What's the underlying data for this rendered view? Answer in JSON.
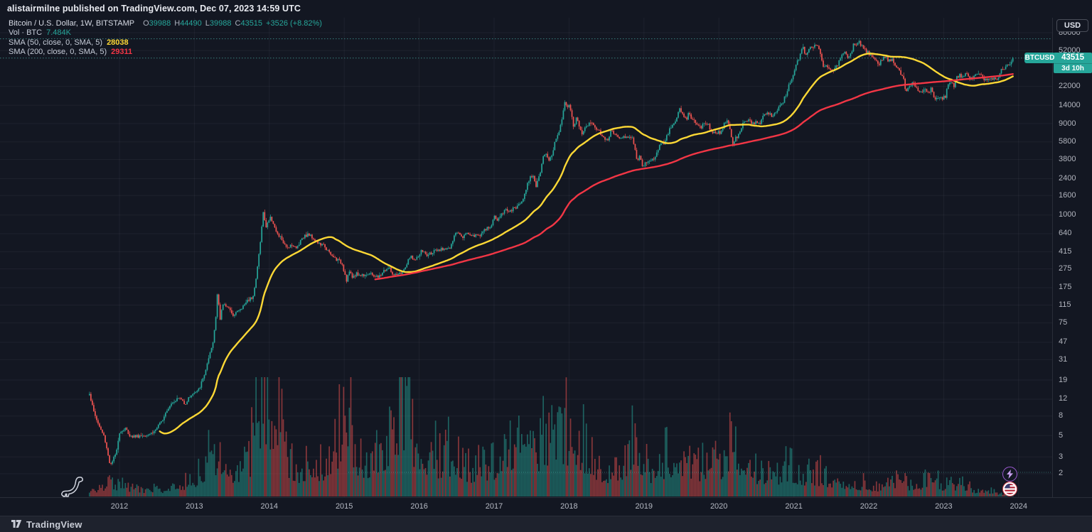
{
  "attribution": "alistairmilne published on TradingView.com, Dec 07, 2023 14:59 UTC",
  "legend": {
    "title": "Bitcoin / U.S. Dollar, 1W, BITSTAMP",
    "ohlc": [
      {
        "k": "O",
        "v": "39988"
      },
      {
        "k": "H",
        "v": "44490"
      },
      {
        "k": "L",
        "v": "39988"
      },
      {
        "k": "C",
        "v": "43515"
      }
    ],
    "change": "+3526 (+8.82%)",
    "vol_label": "Vol · BTC",
    "vol_value": "7.484K",
    "sma50_label": "SMA (50, close, 0, SMA, 5)",
    "sma50_value": "28038",
    "sma200_label": "SMA (200, close, 0, SMA, 5)",
    "sma200_value": "29311"
  },
  "axis": {
    "currency": "USD",
    "price_ticks": [
      80000,
      52000,
      22000,
      14000,
      9000,
      5800,
      3800,
      2400,
      1600,
      1000,
      640,
      415,
      275,
      175,
      115,
      75,
      47,
      31,
      19,
      12,
      8,
      5,
      3,
      2
    ],
    "years": [
      2012,
      2013,
      2014,
      2015,
      2016,
      2017,
      2018,
      2019,
      2020,
      2021,
      2022,
      2023,
      2024
    ],
    "price_tag": {
      "symbol": "BTCUSD",
      "price": "43515",
      "countdown": "3d 10h"
    }
  },
  "footer": {
    "brand": "TradingView"
  },
  "colors": {
    "background": "#131722",
    "candle_up": "#26a69a",
    "candle_down": "#ef5350",
    "sma50": "#fdd835",
    "sma200": "#f23645",
    "level_dotted": "#4db6ac",
    "grid": "rgba(240,243,250,0.05)",
    "axis_text": "#b2b5be"
  },
  "chart_data": {
    "type": "candlestick",
    "title": "Bitcoin / U.S. Dollar, 1W, BITSTAMP",
    "x_unit": "year",
    "x_range": [
      2011.55,
      2024.45
    ],
    "y_scale": "log",
    "y_range_usd": [
      1.8,
      90000
    ],
    "grid": "faint",
    "legend_position": "top-left",
    "last_bar": {
      "open": 39988,
      "high": 44490,
      "low": 39988,
      "close": 43515,
      "change": 3526,
      "change_pct": 8.82,
      "volume": "7.484K BTC"
    },
    "overlays": [
      {
        "name": "SMA 50 (weekly)",
        "period": 50,
        "color": "#fdd835",
        "last_value": 28038
      },
      {
        "name": "SMA 200 (weekly)",
        "period": 200,
        "color": "#f23645",
        "last_value": 29311
      }
    ],
    "levels": [
      {
        "label": "last-close dotted line",
        "value": 43515
      },
      {
        "label": "prior-high dotted line",
        "value": 69000
      }
    ],
    "volume_last_line_label": "7.484K",
    "price_anchors": [
      [
        2011.6,
        14
      ],
      [
        2011.65,
        9.2
      ],
      [
        2011.72,
        6.5
      ],
      [
        2011.8,
        4.8
      ],
      [
        2011.88,
        2.4
      ],
      [
        2011.95,
        3.2
      ],
      [
        2012.0,
        5.4
      ],
      [
        2012.08,
        5.9
      ],
      [
        2012.15,
        4.9
      ],
      [
        2012.3,
        5.0
      ],
      [
        2012.45,
        5.4
      ],
      [
        2012.55,
        6.7
      ],
      [
        2012.62,
        9.0
      ],
      [
        2012.7,
        11.2
      ],
      [
        2012.8,
        12.4
      ],
      [
        2012.88,
        10.8
      ],
      [
        2012.95,
        13.2
      ],
      [
        2013.05,
        14.5
      ],
      [
        2013.12,
        20
      ],
      [
        2013.2,
        33
      ],
      [
        2013.25,
        47
      ],
      [
        2013.29,
        93
      ],
      [
        2013.31,
        179
      ],
      [
        2013.34,
        77
      ],
      [
        2013.38,
        118
      ],
      [
        2013.45,
        112
      ],
      [
        2013.5,
        90
      ],
      [
        2013.55,
        97
      ],
      [
        2013.62,
        103
      ],
      [
        2013.7,
        127
      ],
      [
        2013.78,
        142
      ],
      [
        2013.82,
        203
      ],
      [
        2013.86,
        380
      ],
      [
        2013.9,
        750
      ],
      [
        2013.92,
        1100
      ],
      [
        2013.95,
        735
      ],
      [
        2013.98,
        855
      ],
      [
        2014.02,
        940
      ],
      [
        2014.06,
        810
      ],
      [
        2014.1,
        625
      ],
      [
        2014.16,
        575
      ],
      [
        2014.22,
        450
      ],
      [
        2014.3,
        500
      ],
      [
        2014.36,
        445
      ],
      [
        2014.44,
        590
      ],
      [
        2014.52,
        630
      ],
      [
        2014.58,
        585
      ],
      [
        2014.66,
        500
      ],
      [
        2014.74,
        475
      ],
      [
        2014.82,
        380
      ],
      [
        2014.9,
        345
      ],
      [
        2014.97,
        315
      ],
      [
        2015.03,
        210
      ],
      [
        2015.07,
        260
      ],
      [
        2015.1,
        222
      ],
      [
        2015.16,
        245
      ],
      [
        2015.22,
        235
      ],
      [
        2015.3,
        245
      ],
      [
        2015.38,
        237
      ],
      [
        2015.46,
        222
      ],
      [
        2015.52,
        260
      ],
      [
        2015.6,
        280
      ],
      [
        2015.66,
        230
      ],
      [
        2015.72,
        237
      ],
      [
        2015.8,
        265
      ],
      [
        2015.85,
        330
      ],
      [
        2015.9,
        377
      ],
      [
        2015.94,
        330
      ],
      [
        2015.98,
        362
      ],
      [
        2016.04,
        430
      ],
      [
        2016.1,
        375
      ],
      [
        2016.18,
        415
      ],
      [
        2016.26,
        420
      ],
      [
        2016.34,
        455
      ],
      [
        2016.42,
        450
      ],
      [
        2016.46,
        580
      ],
      [
        2016.5,
        670
      ],
      [
        2016.54,
        655
      ],
      [
        2016.58,
        600
      ],
      [
        2016.64,
        655
      ],
      [
        2016.72,
        610
      ],
      [
        2016.8,
        615
      ],
      [
        2016.88,
        700
      ],
      [
        2016.95,
        745
      ],
      [
        2017.0,
        960
      ],
      [
        2017.04,
        890
      ],
      [
        2017.1,
        1010
      ],
      [
        2017.16,
        1180
      ],
      [
        2017.2,
        1070
      ],
      [
        2017.28,
        1190
      ],
      [
        2017.34,
        1290
      ],
      [
        2017.4,
        1600
      ],
      [
        2017.44,
        2050
      ],
      [
        2017.48,
        2550
      ],
      [
        2017.52,
        2600
      ],
      [
        2017.56,
        1990
      ],
      [
        2017.62,
        2750
      ],
      [
        2017.66,
        4300
      ],
      [
        2017.7,
        4350
      ],
      [
        2017.74,
        3700
      ],
      [
        2017.78,
        4400
      ],
      [
        2017.82,
        6150
      ],
      [
        2017.86,
        7300
      ],
      [
        2017.9,
        9900
      ],
      [
        2017.94,
        14500
      ],
      [
        2017.97,
        14000
      ],
      [
        2018.0,
        13600
      ],
      [
        2018.03,
        11500
      ],
      [
        2018.06,
        8300
      ],
      [
        2018.1,
        10200
      ],
      [
        2018.14,
        8550
      ],
      [
        2018.18,
        7000
      ],
      [
        2018.22,
        8250
      ],
      [
        2018.26,
        8900
      ],
      [
        2018.3,
        9350
      ],
      [
        2018.34,
        8400
      ],
      [
        2018.4,
        7500
      ],
      [
        2018.46,
        6450
      ],
      [
        2018.52,
        6250
      ],
      [
        2018.56,
        7400
      ],
      [
        2018.62,
        7000
      ],
      [
        2018.68,
        6450
      ],
      [
        2018.74,
        6550
      ],
      [
        2018.8,
        6500
      ],
      [
        2018.84,
        6350
      ],
      [
        2018.87,
        5600
      ],
      [
        2018.9,
        3800
      ],
      [
        2018.94,
        4000
      ],
      [
        2018.98,
        3250
      ],
      [
        2019.02,
        3550
      ],
      [
        2019.08,
        3600
      ],
      [
        2019.14,
        3900
      ],
      [
        2019.2,
        5250
      ],
      [
        2019.28,
        5750
      ],
      [
        2019.34,
        7950
      ],
      [
        2019.4,
        8800
      ],
      [
        2019.44,
        10700
      ],
      [
        2019.48,
        12900
      ],
      [
        2019.52,
        10700
      ],
      [
        2019.56,
        9900
      ],
      [
        2019.6,
        11450
      ],
      [
        2019.64,
        10300
      ],
      [
        2019.7,
        8500
      ],
      [
        2019.76,
        8250
      ],
      [
        2019.82,
        9250
      ],
      [
        2019.86,
        8800
      ],
      [
        2019.9,
        7550
      ],
      [
        2019.96,
        7250
      ],
      [
        2020.02,
        7350
      ],
      [
        2020.06,
        8600
      ],
      [
        2020.1,
        9900
      ],
      [
        2020.14,
        8900
      ],
      [
        2020.18,
        5300
      ],
      [
        2020.21,
        6200
      ],
      [
        2020.26,
        6850
      ],
      [
        2020.32,
        8800
      ],
      [
        2020.38,
        9700
      ],
      [
        2020.44,
        9150
      ],
      [
        2020.5,
        9150
      ],
      [
        2020.56,
        9250
      ],
      [
        2020.6,
        11800
      ],
      [
        2020.66,
        11650
      ],
      [
        2020.7,
        10750
      ],
      [
        2020.76,
        11500
      ],
      [
        2020.82,
        13800
      ],
      [
        2020.86,
        15500
      ],
      [
        2020.9,
        18700
      ],
      [
        2020.94,
        23800
      ],
      [
        2020.98,
        26500
      ],
      [
        2021.0,
        32100
      ],
      [
        2021.04,
        38200
      ],
      [
        2021.08,
        46300
      ],
      [
        2021.12,
        57400
      ],
      [
        2021.16,
        45900
      ],
      [
        2021.2,
        54100
      ],
      [
        2021.24,
        57300
      ],
      [
        2021.28,
        58300
      ],
      [
        2021.32,
        55900
      ],
      [
        2021.36,
        49000
      ],
      [
        2021.39,
        35500
      ],
      [
        2021.44,
        35800
      ],
      [
        2021.48,
        33500
      ],
      [
        2021.52,
        31700
      ],
      [
        2021.56,
        34300
      ],
      [
        2021.6,
        39900
      ],
      [
        2021.64,
        47100
      ],
      [
        2021.68,
        48800
      ],
      [
        2021.72,
        43800
      ],
      [
        2021.76,
        47300
      ],
      [
        2021.8,
        61300
      ],
      [
        2021.84,
        60900
      ],
      [
        2021.87,
        65500
      ],
      [
        2021.9,
        58100
      ],
      [
        2021.94,
        53700
      ],
      [
        2021.98,
        50000
      ],
      [
        2022.02,
        47700
      ],
      [
        2022.06,
        42400
      ],
      [
        2022.1,
        39400
      ],
      [
        2022.14,
        38300
      ],
      [
        2022.18,
        42200
      ],
      [
        2022.22,
        45800
      ],
      [
        2022.26,
        39700
      ],
      [
        2022.3,
        42800
      ],
      [
        2022.34,
        38500
      ],
      [
        2022.38,
        34000
      ],
      [
        2022.42,
        30100
      ],
      [
        2022.46,
        29000
      ],
      [
        2022.49,
        19000
      ],
      [
        2022.52,
        21600
      ],
      [
        2022.56,
        23300
      ],
      [
        2022.6,
        24400
      ],
      [
        2022.64,
        21200
      ],
      [
        2022.68,
        19500
      ],
      [
        2022.72,
        19600
      ],
      [
        2022.76,
        20100
      ],
      [
        2022.8,
        19400
      ],
      [
        2022.84,
        20900
      ],
      [
        2022.87,
        16300
      ],
      [
        2022.9,
        16500
      ],
      [
        2022.94,
        16900
      ],
      [
        2022.98,
        16600
      ],
      [
        2023.02,
        17100
      ],
      [
        2023.05,
        23000
      ],
      [
        2023.1,
        23300
      ],
      [
        2023.14,
        22400
      ],
      [
        2023.18,
        28200
      ],
      [
        2023.22,
        28500
      ],
      [
        2023.26,
        27600
      ],
      [
        2023.3,
        29300
      ],
      [
        2023.34,
        26900
      ],
      [
        2023.38,
        27100
      ],
      [
        2023.42,
        30500
      ],
      [
        2023.46,
        30300
      ],
      [
        2023.5,
        29200
      ],
      [
        2023.54,
        26100
      ],
      [
        2023.6,
        26000
      ],
      [
        2023.66,
        26600
      ],
      [
        2023.72,
        27000
      ],
      [
        2023.78,
        34500
      ],
      [
        2023.83,
        34700
      ],
      [
        2023.86,
        37400
      ],
      [
        2023.89,
        37800
      ],
      [
        2023.92,
        40200
      ],
      [
        2023.94,
        43515
      ]
    ],
    "volume_anchors_kbtc": [
      [
        2011.6,
        20
      ],
      [
        2011.9,
        55
      ],
      [
        2012.2,
        30
      ],
      [
        2012.6,
        30
      ],
      [
        2012.95,
        60
      ],
      [
        2013.15,
        150
      ],
      [
        2013.3,
        200
      ],
      [
        2013.5,
        90
      ],
      [
        2013.75,
        180
      ],
      [
        2013.84,
        410
      ],
      [
        2013.93,
        500
      ],
      [
        2014.05,
        300
      ],
      [
        2014.15,
        355
      ],
      [
        2014.3,
        120
      ],
      [
        2014.6,
        140
      ],
      [
        2014.85,
        160
      ],
      [
        2015.03,
        465
      ],
      [
        2015.2,
        180
      ],
      [
        2015.45,
        150
      ],
      [
        2015.6,
        260
      ],
      [
        2015.8,
        420
      ],
      [
        2015.83,
        520
      ],
      [
        2015.9,
        300
      ],
      [
        2016.1,
        160
      ],
      [
        2016.4,
        180
      ],
      [
        2016.6,
        120
      ],
      [
        2016.9,
        130
      ],
      [
        2017.2,
        180
      ],
      [
        2017.5,
        250
      ],
      [
        2017.75,
        220
      ],
      [
        2017.95,
        290
      ],
      [
        2018.08,
        280
      ],
      [
        2018.3,
        160
      ],
      [
        2018.6,
        110
      ],
      [
        2018.9,
        230
      ],
      [
        2019.1,
        120
      ],
      [
        2019.4,
        190
      ],
      [
        2019.6,
        150
      ],
      [
        2019.9,
        110
      ],
      [
        2020.16,
        215
      ],
      [
        2020.4,
        120
      ],
      [
        2020.7,
        90
      ],
      [
        2020.95,
        120
      ],
      [
        2021.1,
        80
      ],
      [
        2021.4,
        95
      ],
      [
        2021.6,
        50
      ],
      [
        2021.9,
        55
      ],
      [
        2022.1,
        45
      ],
      [
        2022.4,
        70
      ],
      [
        2022.6,
        50
      ],
      [
        2022.85,
        90
      ],
      [
        2023.0,
        45
      ],
      [
        2023.2,
        50
      ],
      [
        2023.5,
        25
      ],
      [
        2023.7,
        18
      ],
      [
        2023.94,
        7.5
      ]
    ]
  }
}
